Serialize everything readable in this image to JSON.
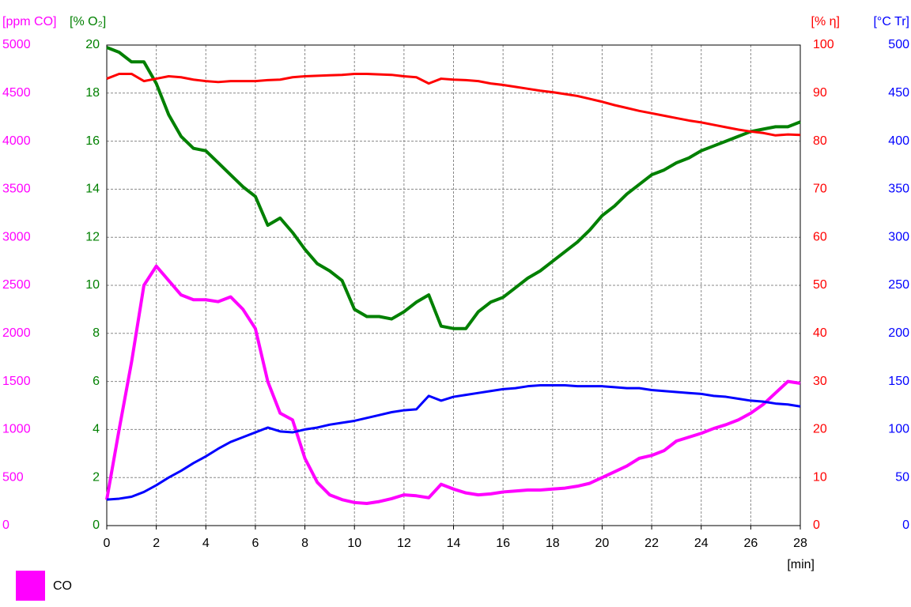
{
  "chart_data": {
    "type": "line",
    "x": [
      0,
      0.5,
      1,
      1.5,
      2,
      2.5,
      3,
      3.5,
      4,
      4.5,
      5,
      5.5,
      6,
      6.5,
      7,
      7.5,
      8,
      8.5,
      9,
      9.5,
      10,
      10.5,
      11,
      11.5,
      12,
      12.5,
      13,
      13.5,
      14,
      14.5,
      15,
      15.5,
      16,
      16.5,
      17,
      17.5,
      18,
      18.5,
      19,
      19.5,
      20,
      20.5,
      21,
      21.5,
      22,
      22.5,
      23,
      23.5,
      24,
      24.5,
      25,
      25.5,
      26,
      26.5,
      27,
      27.5,
      28
    ],
    "xlim": [
      0,
      28
    ],
    "xticks": [
      0,
      2,
      4,
      6,
      8,
      10,
      12,
      14,
      16,
      18,
      20,
      22,
      24,
      26,
      28
    ],
    "xlabel": "[min]",
    "ylabel": "[ppm CO]",
    "ylim": [
      0,
      5000
    ],
    "yticks": [
      0,
      500,
      1000,
      1500,
      2000,
      2500,
      3000,
      3500,
      4000,
      4500,
      5000
    ],
    "y2label": "[% O₂]",
    "y2lim": [
      0,
      20
    ],
    "y2ticks": [
      0,
      2,
      4,
      6,
      8,
      10,
      12,
      14,
      16,
      18,
      20
    ],
    "y3label": "[% η]",
    "y3lim": [
      0,
      100
    ],
    "y3ticks": [
      0,
      10,
      20,
      30,
      40,
      50,
      60,
      70,
      80,
      90,
      100
    ],
    "y4label": "[°C Tr]",
    "y4lim": [
      0,
      500
    ],
    "y4ticks": [
      0,
      50,
      100,
      150,
      200,
      250,
      300,
      350,
      400,
      450,
      500
    ],
    "grid": true,
    "legend": "bottom-left",
    "series": [
      {
        "name": "CO",
        "color": "#ff00ff",
        "axis": "y",
        "values": [
          270,
          1000,
          1700,
          2500,
          2700,
          2550,
          2400,
          2350,
          2350,
          2330,
          2380,
          2250,
          2050,
          1500,
          1170,
          1100,
          700,
          450,
          320,
          270,
          240,
          230,
          250,
          280,
          320,
          310,
          290,
          430,
          380,
          340,
          320,
          330,
          350,
          360,
          370,
          370,
          380,
          390,
          410,
          440,
          500,
          560,
          620,
          700,
          730,
          780,
          880,
          920,
          960,
          1010,
          1050,
          1100,
          1170,
          1260,
          1380,
          1500,
          1480
        ]
      },
      {
        "color": "#008000",
        "axis": "y2",
        "values": [
          19.9,
          19.7,
          19.3,
          19.3,
          18.4,
          17.1,
          16.2,
          15.7,
          15.6,
          15.1,
          14.6,
          14.1,
          13.7,
          12.5,
          12.8,
          12.2,
          11.5,
          10.9,
          10.6,
          10.2,
          9.0,
          8.7,
          8.7,
          8.6,
          8.9,
          9.3,
          9.6,
          8.3,
          8.2,
          8.2,
          8.9,
          9.3,
          9.5,
          9.9,
          10.3,
          10.6,
          11.0,
          11.4,
          11.8,
          12.3,
          12.9,
          13.3,
          13.8,
          14.2,
          14.6,
          14.8,
          15.1,
          15.3,
          15.6,
          15.8,
          16.0,
          16.2,
          16.4,
          16.5,
          16.6,
          16.6,
          16.8
        ]
      },
      {
        "color": "#ff0000",
        "axis": "y3",
        "values": [
          93.0,
          94.0,
          94.0,
          92.5,
          93.0,
          93.5,
          93.3,
          92.8,
          92.5,
          92.3,
          92.5,
          92.5,
          92.5,
          92.7,
          92.8,
          93.3,
          93.5,
          93.6,
          93.7,
          93.8,
          94.0,
          94.0,
          93.9,
          93.8,
          93.5,
          93.3,
          92.0,
          93.0,
          92.8,
          92.7,
          92.5,
          92.0,
          91.7,
          91.3,
          90.9,
          90.5,
          90.2,
          89.8,
          89.4,
          88.8,
          88.2,
          87.5,
          86.9,
          86.3,
          85.8,
          85.3,
          84.8,
          84.3,
          83.9,
          83.4,
          82.9,
          82.4,
          82.0,
          81.7,
          81.2,
          81.4,
          81.3
        ]
      },
      {
        "color": "#0000ff",
        "axis": "y4",
        "values": [
          27,
          28,
          30,
          35,
          42,
          50,
          57,
          65,
          72,
          80,
          87,
          92,
          97,
          102,
          98,
          97,
          100,
          102,
          105,
          107,
          109,
          112,
          115,
          118,
          120,
          121,
          135,
          130,
          134,
          136,
          138,
          140,
          142,
          143,
          145,
          146,
          146,
          146,
          145,
          145,
          145,
          144,
          143,
          143,
          141,
          140,
          139,
          138,
          137,
          135,
          134,
          132,
          130,
          129,
          127,
          126,
          124
        ]
      }
    ]
  }
}
